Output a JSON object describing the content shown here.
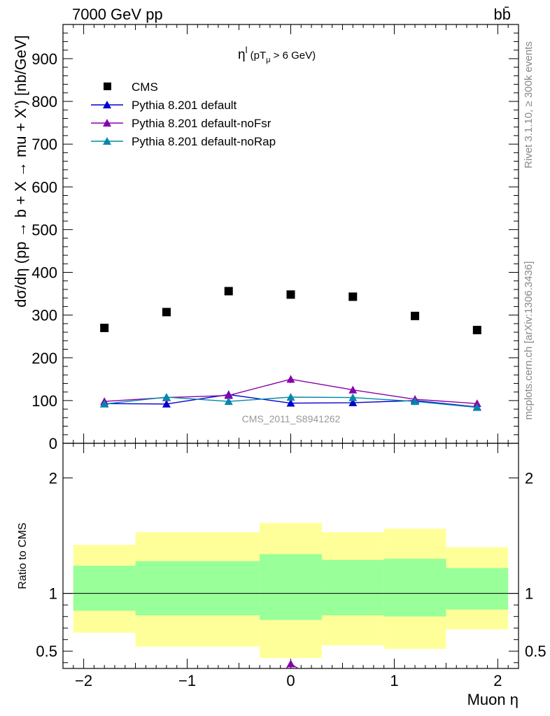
{
  "header": {
    "left": "7000 GeV pp",
    "right": "bb̄"
  },
  "side_labels": {
    "rivet": "Rivet 3.1.10, ≥ 300k events",
    "mcplots": "mcplots.cern.ch [arXiv:1306.3436]"
  },
  "chart_data": [
    {
      "type": "scatter",
      "title": "η^l (pT_μ > 6 GeV)",
      "title_main": "η",
      "title_sup": "l",
      "title_rest": " (pT",
      "title_sub": "μ",
      "title_tail": " >  6 GeV)",
      "ylabel": "dσ/dη (pp → b + X → mu + X') [nb/GeV]",
      "xlim": [
        -2.2,
        2.2
      ],
      "ylim": [
        0,
        980
      ],
      "yticks": [
        0,
        100,
        200,
        300,
        400,
        500,
        600,
        700,
        800,
        900
      ],
      "watermark": "CMS_2011_S8941262",
      "legend_position": "top-left",
      "series": [
        {
          "name": "CMS",
          "color": "#000000",
          "marker": "square",
          "x": [
            -1.8,
            -1.2,
            -0.6,
            0.0,
            0.6,
            1.2,
            1.8
          ],
          "y": [
            270,
            307,
            356,
            348,
            343,
            298,
            265
          ]
        },
        {
          "name": "Pythia 8.201 default",
          "color": "#0000cc",
          "marker": "triangle",
          "x": [
            -1.8,
            -1.2,
            -0.6,
            0.0,
            0.6,
            1.2,
            1.8
          ],
          "y": [
            93,
            92,
            114,
            94,
            95,
            100,
            85
          ],
          "err": [
            6,
            6,
            9,
            6,
            6,
            6,
            5
          ]
        },
        {
          "name": "Pythia 8.201 default-noFsr",
          "color": "#8800aa",
          "marker": "triangle",
          "x": [
            -1.8,
            -1.2,
            -0.6,
            0.0,
            0.6,
            1.2,
            1.8
          ],
          "y": [
            98,
            107,
            112,
            150,
            125,
            103,
            93
          ],
          "err": [
            6,
            7,
            8,
            9,
            8,
            7,
            6
          ]
        },
        {
          "name": "Pythia 8.201 default-noRap",
          "color": "#0088aa",
          "marker": "triangle",
          "x": [
            -1.8,
            -1.2,
            -0.6,
            0.0,
            0.6,
            1.2,
            1.8
          ],
          "y": [
            92,
            108,
            98,
            108,
            107,
            98,
            84
          ],
          "err": [
            6,
            7,
            6,
            7,
            7,
            6,
            5
          ]
        }
      ]
    },
    {
      "type": "scatter",
      "ylabel": "Ratio to CMS",
      "xlabel": "Muon η",
      "xlim": [
        -2.2,
        2.2
      ],
      "ylim": [
        0.35,
        2.3
      ],
      "yticks": [
        0.5,
        1,
        2
      ],
      "ytick_labels": [
        "0.5",
        "1",
        "2"
      ],
      "xticks": [
        -2,
        -1,
        0,
        1,
        2
      ],
      "xtick_labels": [
        "−2",
        "−1",
        "0",
        "1",
        "2"
      ],
      "bands": {
        "edges": [
          -2.1,
          -1.5,
          -0.3,
          0.3,
          0.9,
          1.5,
          2.1
        ],
        "edges_yellow": [
          -2.1,
          -1.5,
          -0.3,
          0.3,
          0.9,
          1.5,
          2.1
        ],
        "green_color": "#99ff99",
        "yellow_color": "#ffff99",
        "bins": [
          {
            "x0": -2.1,
            "x1": -1.5,
            "y_lo": 0.66,
            "y_hi": 1.42,
            "g_lo": 0.85,
            "g_hi": 1.24
          },
          {
            "x0": -1.5,
            "x1": -0.3,
            "y_lo": 0.54,
            "y_hi": 1.53,
            "g_lo": 0.81,
            "g_hi": 1.28
          },
          {
            "x0": -0.3,
            "x1": 0.3,
            "y_lo": 0.44,
            "y_hi": 1.61,
            "g_lo": 0.77,
            "g_hi": 1.34
          },
          {
            "x0": 0.3,
            "x1": 0.9,
            "y_lo": 0.55,
            "y_hi": 1.53,
            "g_lo": 0.81,
            "g_hi": 1.29
          },
          {
            "x0": 0.9,
            "x1": 1.5,
            "y_lo": 0.52,
            "y_hi": 1.56,
            "g_lo": 0.8,
            "g_hi": 1.3
          },
          {
            "x0": 1.5,
            "x1": 2.1,
            "y_lo": 0.69,
            "y_hi": 1.4,
            "g_lo": 0.86,
            "g_hi": 1.22
          }
        ]
      },
      "series": [
        {
          "name": "Pythia 8.201 default-noFsr",
          "color": "#8800aa",
          "marker": "triangle",
          "x": [
            0.0
          ],
          "y": [
            0.39
          ],
          "err": [
            0.03
          ]
        }
      ]
    }
  ]
}
